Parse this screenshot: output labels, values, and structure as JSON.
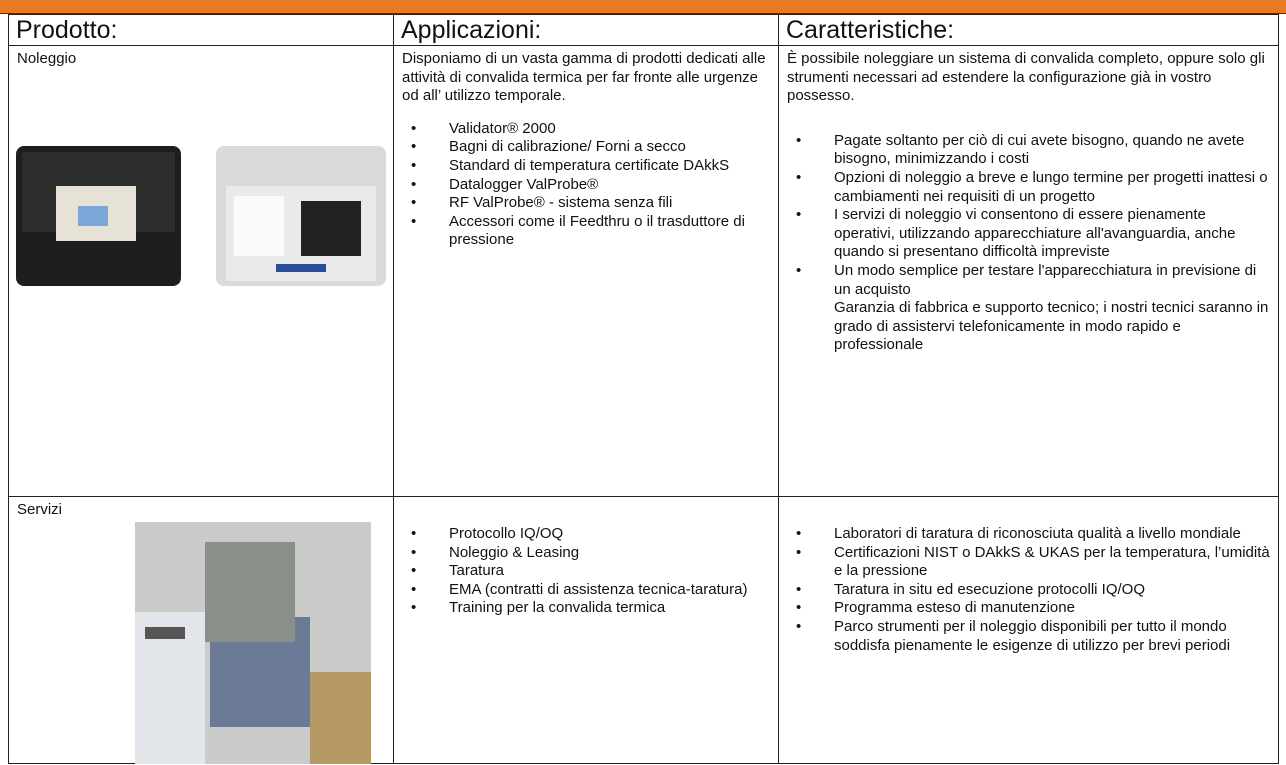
{
  "table": {
    "headers": [
      "Prodotto:",
      "Applicazioni:",
      "Caratteristiche:"
    ],
    "rows": [
      {
        "product": "Noleggio",
        "applications": {
          "intro": "Disponiamo di un vasta gamma di prodotti dedicati alle attività di convalida termica per far fronte alle urgenze od all’ utilizzo temporale.",
          "bullets": [
            "Validator® 2000",
            "Bagni di calibrazione/ Forni a secco",
            "Standard di temperatura certificate DAkkS",
            "Datalogger ValProbe®",
            "RF ValProbe® - sistema senza fili",
            " Accessori come il Feedthru o il trasduttore di pressione"
          ]
        },
        "features": {
          "intro": "È possibile noleggiare un sistema di convalida completo, oppure solo gli strumenti necessari ad estendere la configurazione già in vostro possesso.",
          "bullets": [
            "Pagate soltanto per ciò di cui avete bisogno, quando ne avete bisogno, minimizzando i costi",
            "Opzioni di noleggio a breve e lungo termine per progetti inattesi o cambiamenti nei requisiti di un progetto",
            "I servizi di noleggio vi consentono di essere pienamente operativi, utilizzando apparecchiature all'avanguardia, anche quando si presentano difficoltà impreviste",
            "Un modo semplice per testare l'apparecchiatura in previsione di un acquisto"
          ],
          "note": "Garanzia di fabbrica e supporto tecnico; i nostri tecnici saranno in grado di assistervi telefonicamente in modo rapido e professionale"
        }
      },
      {
        "product": "Servizi",
        "applications": {
          "bullets": [
            "Protocollo IQ/OQ",
            "Noleggio & Leasing",
            "Taratura",
            "EMA (contratti di assistenza tecnica-taratura)",
            "Training per la convalida termica"
          ]
        },
        "features": {
          "bullets": [
            "Laboratori di taratura di riconosciuta qualità a livello mondiale",
            "Certificazioni NIST o DAkkS & UKAS per la temperatura, l’umidità e la pressione",
            "Taratura in situ ed esecuzione protocolli IQ/OQ",
            "Programma esteso di manutenzione",
            "Parco strumenti per il noleggio disponibili per tutto il mondo soddisfa pienamente le esigenze di utilizzo per brevi periodi"
          ]
        }
      }
    ]
  }
}
